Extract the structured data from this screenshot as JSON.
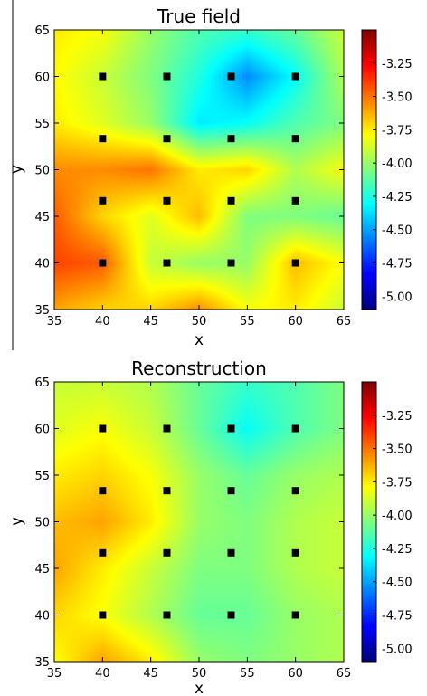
{
  "chart_data": [
    {
      "type": "heatmap",
      "title": "True field",
      "xlabel": "x",
      "ylabel": "y",
      "xlim": [
        35,
        65
      ],
      "ylim": [
        35,
        65
      ],
      "xticks": [
        35,
        40,
        45,
        50,
        55,
        60,
        65
      ],
      "yticks": [
        35,
        40,
        45,
        50,
        55,
        60,
        65
      ],
      "colorbar": {
        "range": [
          -5.1,
          -3.0
        ],
        "ticks": [
          -5.0,
          -4.75,
          -4.5,
          -4.25,
          -4.0,
          -3.75,
          -3.5,
          -3.25
        ],
        "tick_labels": [
          "-5.00",
          "-4.75",
          "-4.50",
          "-4.25",
          "-4.00",
          "-3.75",
          "-3.50",
          "-3.25"
        ],
        "colormap": "jet"
      },
      "field": {
        "x": [
          35,
          40,
          45,
          50,
          55,
          60,
          65
        ],
        "y": [
          65,
          60,
          55,
          50,
          45,
          40,
          35
        ],
        "z": [
          [
            -3.75,
            -3.8,
            -4.0,
            -4.15,
            -4.2,
            -4.1,
            -3.9
          ],
          [
            -3.78,
            -3.9,
            -4.05,
            -4.25,
            -4.55,
            -4.3,
            -3.95
          ],
          [
            -3.75,
            -3.85,
            -4.0,
            -4.35,
            -4.3,
            -4.15,
            -4.05
          ],
          [
            -3.55,
            -3.55,
            -3.5,
            -3.75,
            -3.7,
            -3.95,
            -3.8
          ],
          [
            -3.45,
            -3.7,
            -3.85,
            -3.65,
            -4.05,
            -4.05,
            -4.1
          ],
          [
            -3.4,
            -3.45,
            -3.9,
            -4.0,
            -4.0,
            -3.65,
            -3.8
          ],
          [
            -3.6,
            -3.7,
            -3.7,
            -3.55,
            -3.8,
            -3.75,
            -3.9
          ]
        ]
      },
      "sensors": {
        "x": [
          40,
          46.67,
          53.33,
          60,
          40,
          46.67,
          53.33,
          60,
          40,
          46.67,
          53.33,
          60,
          40,
          46.67,
          53.33,
          60
        ],
        "y": [
          60,
          60,
          60,
          60,
          53.33,
          53.33,
          53.33,
          53.33,
          46.67,
          46.67,
          46.67,
          46.67,
          40,
          40,
          40,
          40
        ]
      }
    },
    {
      "type": "heatmap",
      "title": "Reconstruction",
      "xlabel": "x",
      "ylabel": "y",
      "xlim": [
        35,
        65
      ],
      "ylim": [
        35,
        65
      ],
      "xticks": [
        35,
        40,
        45,
        50,
        55,
        60,
        65
      ],
      "yticks": [
        35,
        40,
        45,
        50,
        55,
        60,
        65
      ],
      "colorbar": {
        "range": [
          -5.1,
          -3.0
        ],
        "ticks": [
          -5.0,
          -4.75,
          -4.5,
          -4.25,
          -4.0,
          -3.75,
          -3.5,
          -3.25
        ],
        "tick_labels": [
          "-5.00",
          "-4.75",
          "-4.50",
          "-4.25",
          "-4.00",
          "-3.75",
          "-3.50",
          "-3.25"
        ],
        "colormap": "jet"
      },
      "field": {
        "x": [
          35,
          40,
          45,
          50,
          55,
          60,
          65
        ],
        "y": [
          65,
          60,
          55,
          50,
          45,
          40,
          35
        ],
        "z": [
          [
            -3.9,
            -3.9,
            -3.95,
            -4.1,
            -4.2,
            -4.15,
            -4.05
          ],
          [
            -3.85,
            -3.8,
            -3.9,
            -4.1,
            -4.3,
            -4.15,
            -4.05
          ],
          [
            -3.75,
            -3.7,
            -3.8,
            -4.0,
            -4.1,
            -4.0,
            -3.95
          ],
          [
            -3.65,
            -3.6,
            -3.75,
            -4.0,
            -4.05,
            -3.95,
            -3.9
          ],
          [
            -3.6,
            -3.75,
            -3.9,
            -4.05,
            -4.05,
            -3.95,
            -3.9
          ],
          [
            -3.7,
            -3.8,
            -3.95,
            -4.1,
            -4.1,
            -4.0,
            -3.95
          ],
          [
            -3.8,
            -3.6,
            -3.75,
            -4.0,
            -4.05,
            -4.0,
            -3.95
          ]
        ]
      },
      "sensors": {
        "x": [
          40,
          46.67,
          53.33,
          60,
          40,
          46.67,
          53.33,
          60,
          40,
          46.67,
          53.33,
          60,
          40,
          46.67,
          53.33,
          60
        ],
        "y": [
          60,
          60,
          60,
          60,
          53.33,
          53.33,
          53.33,
          53.33,
          46.67,
          46.67,
          46.67,
          46.67,
          40,
          40,
          40,
          40
        ]
      }
    }
  ]
}
